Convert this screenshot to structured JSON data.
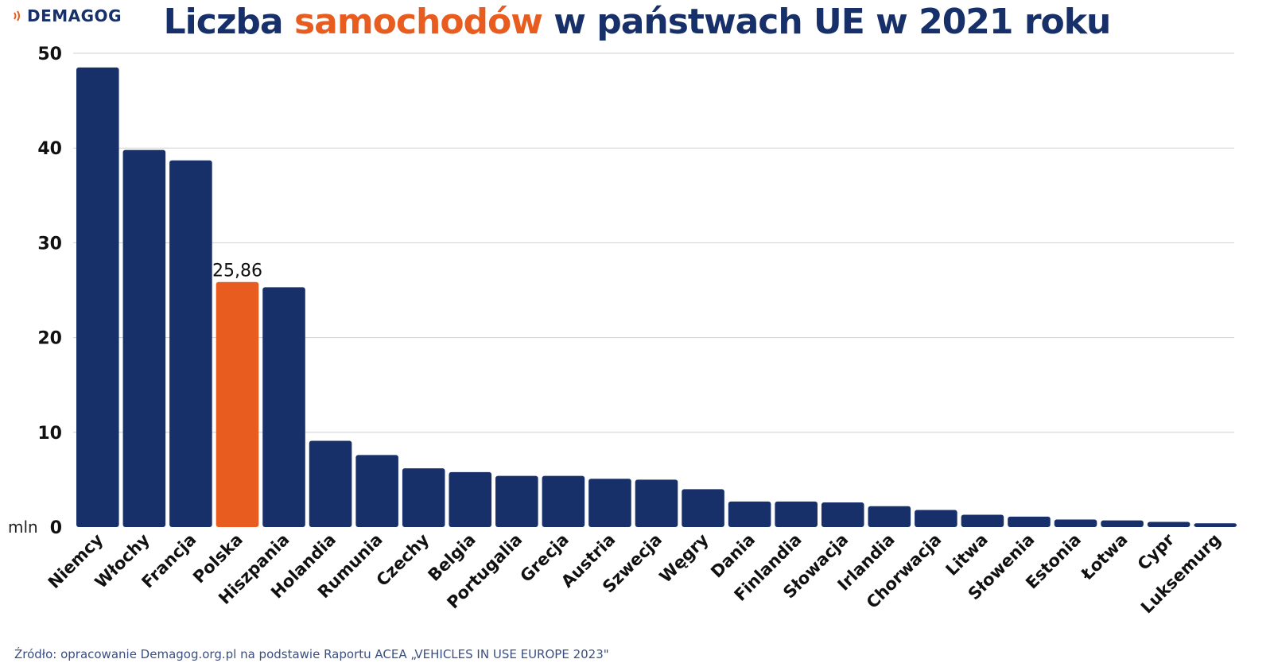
{
  "logo": {
    "text": "DEMAGOG"
  },
  "title": {
    "part1": "Liczba ",
    "highlight": "samochodów",
    "part2": " w państwach UE w 2021 roku"
  },
  "source": "Źródło: opracowanie Demagog.org.pl na podstawie Raportu ACEA „VEHICLES IN USE EUROPE 2023\"",
  "colors": {
    "bar": "#17306a",
    "highlight": "#e85d1f",
    "grid": "#d0d0d0",
    "title": "#17306a"
  },
  "chart_data": {
    "type": "bar",
    "unit_label": "mln",
    "ylim": [
      0,
      50
    ],
    "yticks": [
      "0",
      "10",
      "20",
      "30",
      "40",
      "50"
    ],
    "grid": true,
    "legend": "none",
    "highlight_index": 3,
    "highlight_label": "25,86",
    "categories": [
      "Niemcy",
      "Włochy",
      "Francja",
      "Polska",
      "Hiszpania",
      "Holandia",
      "Rumunia",
      "Czechy",
      "Belgia",
      "Portugalia",
      "Grecja",
      "Austria",
      "Szwecja",
      "Węgry",
      "Dania",
      "Finlandia",
      "Słowacja",
      "Irlandia",
      "Chorwacja",
      "Litwa",
      "Słowenia",
      "Estonia",
      "Łotwa",
      "Cypr",
      "Luksemurg"
    ],
    "values": [
      48.5,
      39.8,
      38.7,
      25.86,
      25.3,
      9.1,
      7.6,
      6.2,
      5.8,
      5.4,
      5.4,
      5.1,
      5.0,
      4.0,
      2.7,
      2.7,
      2.6,
      2.2,
      1.8,
      1.3,
      1.1,
      0.8,
      0.7,
      0.55,
      0.4
    ]
  }
}
